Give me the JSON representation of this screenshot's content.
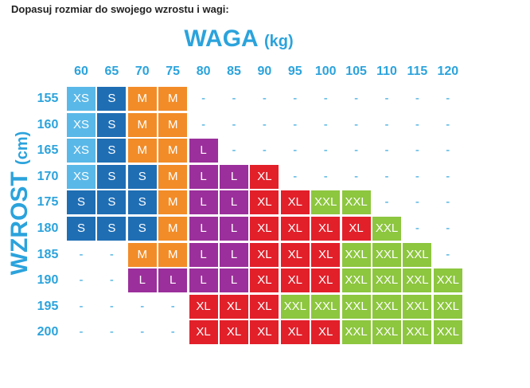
{
  "header": {
    "title": "Dopasuj rozmiar do swojego wzrostu i wagi:"
  },
  "weight_axis": {
    "label": "WAGA",
    "unit": "(kg)",
    "values": [
      "60",
      "65",
      "70",
      "75",
      "80",
      "85",
      "90",
      "95",
      "100",
      "105",
      "110",
      "115",
      "120"
    ]
  },
  "height_axis": {
    "label": "WZROST",
    "unit": "(cm)",
    "values": [
      "155",
      "160",
      "165",
      "170",
      "175",
      "180",
      "185",
      "190",
      "195",
      "200"
    ]
  },
  "table": {
    "rows": [
      [
        "XS",
        "S",
        "M",
        "M",
        "-",
        "-",
        "-",
        "-",
        "-",
        "-",
        "-",
        "-",
        "-"
      ],
      [
        "XS",
        "S",
        "M",
        "M",
        "-",
        "-",
        "-",
        "-",
        "-",
        "-",
        "-",
        "-",
        "-"
      ],
      [
        "XS",
        "S",
        "M",
        "M",
        "L",
        "-",
        "-",
        "-",
        "-",
        "-",
        "-",
        "-",
        "-"
      ],
      [
        "XS",
        "S",
        "S",
        "M",
        "L",
        "L",
        "XL",
        "-",
        "-",
        "-",
        "-",
        "-",
        "-"
      ],
      [
        "S",
        "S",
        "S",
        "M",
        "L",
        "L",
        "XL",
        "XL",
        "XXL",
        "XXL",
        "-",
        "-",
        "-"
      ],
      [
        "S",
        "S",
        "S",
        "M",
        "L",
        "L",
        "XL",
        "XL",
        "XL",
        "XL",
        "XXL",
        "-",
        "-"
      ],
      [
        "-",
        "-",
        "M",
        "M",
        "L",
        "L",
        "XL",
        "XL",
        "XL",
        "XXL",
        "XXL",
        "XXL",
        "-"
      ],
      [
        "-",
        "-",
        "L",
        "L",
        "L",
        "L",
        "XL",
        "XL",
        "XL",
        "XXL",
        "XXL",
        "XXL",
        "XXL"
      ],
      [
        "-",
        "-",
        "-",
        "-",
        "XL",
        "XL",
        "XL",
        "XXL",
        "XXL",
        "XXL",
        "XXL",
        "XXL",
        "XXL"
      ],
      [
        "-",
        "-",
        "-",
        "-",
        "XL",
        "XL",
        "XL",
        "XL",
        "XL",
        "XXL",
        "XXL",
        "XXL",
        "XXL"
      ]
    ]
  }
}
